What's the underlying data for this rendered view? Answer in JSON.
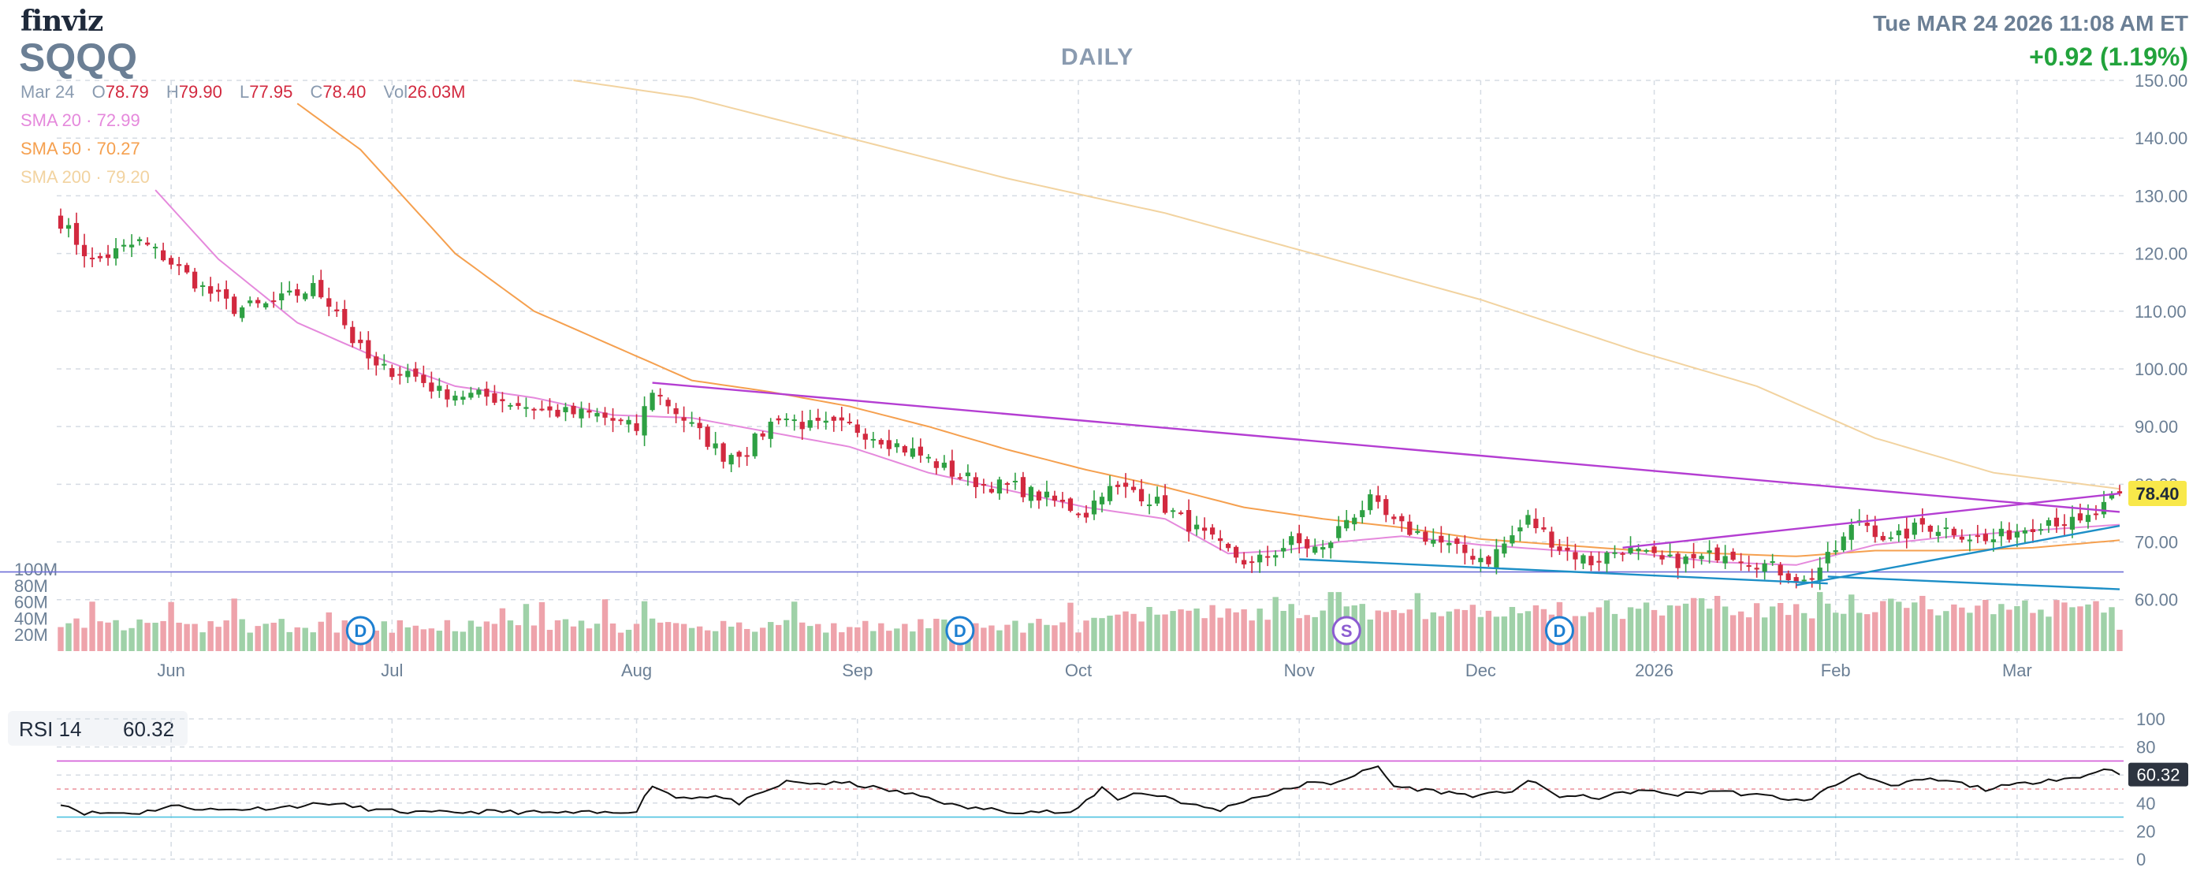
{
  "header": {
    "logo": "finviz",
    "ticker": "SQQQ",
    "timeframe": "DAILY",
    "datetime": "Tue MAR 24 2026 11:08 AM ET",
    "change": "+0.92 (1.19%)"
  },
  "ohlc": {
    "date": "Mar 24",
    "open_label": "O",
    "open": "78.79",
    "high_label": "H",
    "high": "79.90",
    "low_label": "L",
    "low": "77.95",
    "close_label": "C",
    "close": "78.40",
    "vol_label": "Vol",
    "volume": "26.03M"
  },
  "sma": [
    {
      "label": "SMA 20",
      "sep": "·",
      "value": "72.99",
      "color": "#e589dc"
    },
    {
      "label": "SMA 50",
      "sep": "·",
      "value": "70.27",
      "color": "#f5a04f"
    },
    {
      "label": "SMA 200",
      "sep": "·",
      "value": "79.20",
      "color": "#f2d3a0"
    }
  ],
  "rsi": {
    "label": "RSI 14",
    "value": "60.32"
  },
  "colors": {
    "up": "#2ea043",
    "down": "#d2293f",
    "up_volume": "#9fd1a8",
    "down_volume": "#eea3ab",
    "trendline": "#b43ed2",
    "support": "#1d8fc7",
    "level_line": "#6f6fd8",
    "grid": "#d5dbe3",
    "price_tag_bg": "#f8e84a",
    "rsi_tag_bg": "#2d3440"
  },
  "chart_data": [
    {
      "type": "candlestick",
      "title": "SQQQ",
      "x_labels": [
        "Jun",
        "Jul",
        "Aug",
        "Sep",
        "Oct",
        "Nov",
        "Dec",
        "2026",
        "Feb",
        "Mar"
      ],
      "y_ticks": [
        "60.00",
        "70.00",
        "80.00",
        "90.00",
        "100.00",
        "110.00",
        "120.00",
        "130.00",
        "140.00",
        "150.00"
      ],
      "ylim": [
        56,
        150
      ],
      "last_price": "78.40",
      "volume_ticks": [
        "20M",
        "40M",
        "60M",
        "80M",
        "100M"
      ],
      "event_markers": [
        {
          "label": "D",
          "position_day": 38
        },
        {
          "label": "D",
          "position_day": 114
        },
        {
          "label": "S",
          "position_day": 163
        },
        {
          "label": "D",
          "position_day": 190
        }
      ],
      "close_anchors": [
        [
          0,
          125.6
        ],
        [
          4,
          118.5
        ],
        [
          10,
          122
        ],
        [
          13,
          119.5
        ],
        [
          18,
          114
        ],
        [
          22,
          110.5
        ],
        [
          26,
          111
        ],
        [
          32,
          114
        ],
        [
          35,
          110.5
        ],
        [
          37,
          105
        ],
        [
          40,
          100
        ],
        [
          44,
          99.5
        ],
        [
          48,
          96
        ],
        [
          55,
          95
        ],
        [
          62,
          92.5
        ],
        [
          68,
          92
        ],
        [
          73,
          89.5
        ],
        [
          75,
          96.5
        ],
        [
          80,
          90
        ],
        [
          84,
          85
        ],
        [
          87,
          86
        ],
        [
          91,
          92
        ],
        [
          95,
          90
        ],
        [
          100,
          90
        ],
        [
          104,
          88
        ],
        [
          109,
          85
        ],
        [
          113,
          82
        ],
        [
          117,
          80
        ],
        [
          121,
          79.5
        ],
        [
          125,
          77.5
        ],
        [
          130,
          75
        ],
        [
          132,
          79
        ],
        [
          136,
          79
        ],
        [
          140,
          76
        ],
        [
          143,
          73
        ],
        [
          147,
          69
        ],
        [
          151,
          66
        ],
        [
          156,
          70
        ],
        [
          160,
          68.5
        ],
        [
          163,
          74
        ],
        [
          166,
          77
        ],
        [
          169,
          73
        ],
        [
          173,
          71
        ],
        [
          177,
          68.5
        ],
        [
          181,
          67
        ],
        [
          184,
          71
        ],
        [
          186,
          74
        ],
        [
          190,
          69
        ],
        [
          194,
          66.5
        ],
        [
          198,
          69
        ],
        [
          203,
          66.5
        ],
        [
          208,
          67
        ],
        [
          211,
          68.5
        ],
        [
          214,
          67
        ],
        [
          218,
          65
        ],
        [
          221,
          63
        ],
        [
          224,
          67
        ],
        [
          228,
          74
        ],
        [
          232,
          70
        ],
        [
          236,
          73
        ],
        [
          240,
          72
        ],
        [
          244,
          70
        ],
        [
          248,
          72
        ],
        [
          252,
          74
        ],
        [
          256,
          73
        ],
        [
          259,
          76
        ],
        [
          261,
          78.4
        ]
      ],
      "sma20_anchors": [
        [
          12,
          131
        ],
        [
          20,
          119
        ],
        [
          30,
          108
        ],
        [
          40,
          102
        ],
        [
          50,
          97
        ],
        [
          60,
          95
        ],
        [
          70,
          92
        ],
        [
          80,
          91.5
        ],
        [
          90,
          89
        ],
        [
          100,
          86.5
        ],
        [
          110,
          82
        ],
        [
          120,
          79
        ],
        [
          130,
          76
        ],
        [
          140,
          74
        ],
        [
          148,
          68
        ],
        [
          155,
          68.5
        ],
        [
          162,
          70
        ],
        [
          170,
          71
        ],
        [
          180,
          69.5
        ],
        [
          190,
          68.5
        ],
        [
          200,
          68
        ],
        [
          210,
          66.5
        ],
        [
          220,
          66
        ],
        [
          230,
          69.5
        ],
        [
          240,
          71
        ],
        [
          250,
          72
        ],
        [
          261,
          73
        ]
      ],
      "sma50_anchors": [
        [
          30,
          146
        ],
        [
          38,
          138
        ],
        [
          50,
          120
        ],
        [
          60,
          110
        ],
        [
          70,
          104
        ],
        [
          80,
          98
        ],
        [
          90,
          96
        ],
        [
          100,
          93.5
        ],
        [
          110,
          90
        ],
        [
          120,
          86
        ],
        [
          130,
          82.5
        ],
        [
          140,
          79.5
        ],
        [
          150,
          76
        ],
        [
          160,
          74
        ],
        [
          170,
          72.5
        ],
        [
          180,
          70.5
        ],
        [
          190,
          69.5
        ],
        [
          200,
          68.5
        ],
        [
          210,
          68
        ],
        [
          220,
          67.5
        ],
        [
          230,
          68.5
        ],
        [
          240,
          68.5
        ],
        [
          250,
          69
        ],
        [
          261,
          70.3
        ]
      ],
      "sma200_anchors": [
        [
          65,
          150
        ],
        [
          80,
          147
        ],
        [
          100,
          140
        ],
        [
          120,
          133
        ],
        [
          140,
          127
        ],
        [
          160,
          119.5
        ],
        [
          180,
          112
        ],
        [
          200,
          103
        ],
        [
          215,
          97
        ],
        [
          230,
          88
        ],
        [
          245,
          82
        ],
        [
          261,
          79.2
        ]
      ],
      "trendlines": [
        {
          "from": [
            75,
            97.6
          ],
          "to": [
            261,
            75.2
          ],
          "color": "#b43ed2"
        },
        {
          "from": [
            198,
            69
          ],
          "to": [
            261,
            78.4
          ],
          "color": "#b43ed2"
        },
        {
          "from": [
            157,
            67
          ],
          "to": [
            224,
            62.8
          ],
          "color": "#1d8fc7"
        },
        {
          "from": [
            220,
            62.5
          ],
          "to": [
            261,
            72.8
          ],
          "color": "#1d8fc7"
        },
        {
          "from": [
            224,
            64
          ],
          "to": [
            261,
            61.8
          ],
          "color": "#1d8fc7"
        }
      ],
      "horizontal_level": 64.8
    },
    {
      "type": "line",
      "title": "RSI 14",
      "y_ticks": [
        "0",
        "20",
        "40",
        "60",
        "80",
        "100"
      ],
      "ylim": [
        0,
        100
      ],
      "last_value": "60.32",
      "overbought": 70,
      "oversold": 30,
      "rsi_anchors": [
        [
          0,
          40
        ],
        [
          3,
          33
        ],
        [
          10,
          33
        ],
        [
          14,
          38
        ],
        [
          20,
          35
        ],
        [
          28,
          37
        ],
        [
          34,
          40
        ],
        [
          40,
          35
        ],
        [
          46,
          33
        ],
        [
          55,
          34
        ],
        [
          62,
          33
        ],
        [
          70,
          33
        ],
        [
          73,
          35
        ],
        [
          75,
          53
        ],
        [
          78,
          44
        ],
        [
          83,
          45
        ],
        [
          86,
          40
        ],
        [
          89,
          47
        ],
        [
          92,
          55
        ],
        [
          96,
          54
        ],
        [
          100,
          54
        ],
        [
          104,
          50
        ],
        [
          110,
          44
        ],
        [
          114,
          37
        ],
        [
          117,
          36
        ],
        [
          121,
          34
        ],
        [
          125,
          34
        ],
        [
          128,
          32
        ],
        [
          132,
          51
        ],
        [
          134,
          43
        ],
        [
          136,
          47
        ],
        [
          140,
          45
        ],
        [
          143,
          39
        ],
        [
          147,
          35
        ],
        [
          150,
          42
        ],
        [
          155,
          49
        ],
        [
          158,
          54
        ],
        [
          161,
          54
        ],
        [
          164,
          60
        ],
        [
          167,
          66
        ],
        [
          169,
          52
        ],
        [
          175,
          48
        ],
        [
          180,
          45
        ],
        [
          184,
          49
        ],
        [
          186,
          56
        ],
        [
          190,
          45
        ],
        [
          195,
          44
        ],
        [
          200,
          49
        ],
        [
          205,
          46
        ],
        [
          210,
          49
        ],
        [
          214,
          46
        ],
        [
          218,
          44
        ],
        [
          221,
          41
        ],
        [
          224,
          50
        ],
        [
          228,
          62
        ],
        [
          232,
          51
        ],
        [
          236,
          57
        ],
        [
          240,
          55
        ],
        [
          244,
          50
        ],
        [
          248,
          53
        ],
        [
          252,
          57
        ],
        [
          256,
          58
        ],
        [
          259,
          65
        ],
        [
          261,
          60.3
        ]
      ]
    }
  ]
}
